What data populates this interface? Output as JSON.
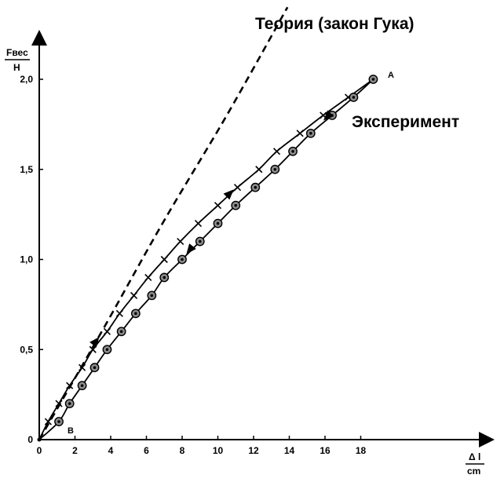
{
  "chart_data": {
    "type": "line",
    "title": "",
    "xlabel": {
      "top": "Δ l",
      "bottom": "cm"
    },
    "ylabel": {
      "top": "Fвес",
      "bottom": "Н"
    },
    "xlim": [
      0,
      21.5
    ],
    "ylim": [
      0,
      2.2
    ],
    "xticks": [
      0,
      2,
      4,
      6,
      8,
      10,
      12,
      14,
      16,
      18
    ],
    "xtick_labels": [
      "0",
      "2",
      "4",
      "6",
      "8",
      "10",
      "12",
      "14",
      "16",
      "18"
    ],
    "yticks": [
      0,
      0.5,
      1.0,
      1.5,
      2.0
    ],
    "ytick_labels": [
      "0",
      "0,5",
      "1,0",
      "1,5",
      "2,0"
    ],
    "grid": false,
    "annotations": [
      {
        "id": "theory",
        "text": "Теория (закон Гука)"
      },
      {
        "id": "experiment",
        "text": "Эксперимент"
      },
      {
        "id": "point-a",
        "text": "A"
      },
      {
        "id": "point-b",
        "text": "B"
      }
    ],
    "series": [
      {
        "id": "theory",
        "style": "dashed",
        "points": [
          [
            0,
            0
          ],
          [
            3.5,
            0.6
          ],
          [
            6.9,
            1.2
          ],
          [
            10.5,
            1.8
          ],
          [
            13.9,
            2.4
          ]
        ]
      },
      {
        "id": "loading",
        "marker": "x",
        "points": [
          [
            0,
            0
          ],
          [
            0.5,
            0.1
          ],
          [
            1.1,
            0.2
          ],
          [
            1.7,
            0.3
          ],
          [
            2.4,
            0.4
          ],
          [
            3.0,
            0.5
          ],
          [
            3.8,
            0.6
          ],
          [
            4.5,
            0.7
          ],
          [
            5.3,
            0.8
          ],
          [
            6.1,
            0.9
          ],
          [
            7.0,
            1.0
          ],
          [
            7.9,
            1.1
          ],
          [
            8.9,
            1.2
          ],
          [
            10.0,
            1.3
          ],
          [
            11.1,
            1.4
          ],
          [
            12.3,
            1.5
          ],
          [
            13.3,
            1.6
          ],
          [
            14.6,
            1.7
          ],
          [
            15.9,
            1.8
          ],
          [
            17.3,
            1.9
          ],
          [
            18.7,
            2.0
          ]
        ]
      },
      {
        "id": "unloading",
        "marker": "o",
        "points": [
          [
            0,
            0
          ],
          [
            1.1,
            0.1
          ],
          [
            1.7,
            0.2
          ],
          [
            2.4,
            0.3
          ],
          [
            3.1,
            0.4
          ],
          [
            3.8,
            0.5
          ],
          [
            4.6,
            0.6
          ],
          [
            5.4,
            0.7
          ],
          [
            6.3,
            0.8
          ],
          [
            7.0,
            0.9
          ],
          [
            8.0,
            1.0
          ],
          [
            9.0,
            1.1
          ],
          [
            10.0,
            1.2
          ],
          [
            11.0,
            1.3
          ],
          [
            12.1,
            1.4
          ],
          [
            13.2,
            1.5
          ],
          [
            14.2,
            1.6
          ],
          [
            15.2,
            1.7
          ],
          [
            16.4,
            1.8
          ],
          [
            17.6,
            1.9
          ],
          [
            18.7,
            2.0
          ]
        ]
      }
    ],
    "direction_arrows": [
      {
        "series": "loading",
        "at": [
          3.2,
          0.55
        ],
        "toward": [
          3.6,
          0.6
        ]
      },
      {
        "series": "loading",
        "at": [
          10.7,
          1.37
        ],
        "toward": [
          11.0,
          1.4
        ]
      },
      {
        "series": "unloading",
        "at": [
          8.4,
          1.05
        ],
        "toward": [
          8.0,
          1.0
        ]
      },
      {
        "series": "unloading",
        "at": [
          16.1,
          1.79
        ],
        "toward": [
          15.7,
          1.75
        ]
      }
    ]
  }
}
